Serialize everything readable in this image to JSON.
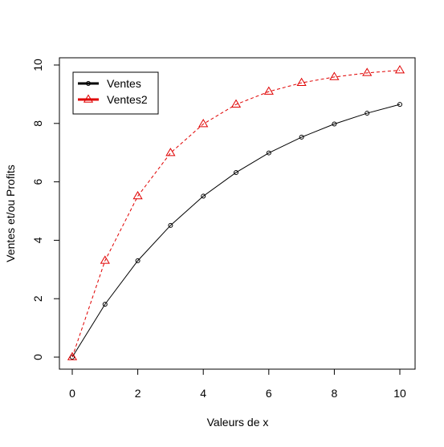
{
  "chart_data": {
    "type": "line",
    "title": "",
    "xlabel": "Valeurs de x",
    "ylabel": "Ventes et/ou Profits",
    "xlim": [
      0,
      10
    ],
    "ylim": [
      0,
      10
    ],
    "x_ticks": [
      0,
      2,
      4,
      6,
      8,
      10
    ],
    "y_ticks": [
      0,
      2,
      4,
      6,
      8,
      10
    ],
    "x_tick_labels": [
      "0",
      "2",
      "4",
      "6",
      "8",
      "10"
    ],
    "y_tick_labels": [
      "0",
      "2",
      "4",
      "6",
      "8",
      "10"
    ],
    "grid": false,
    "legend_position": "top-left",
    "series": [
      {
        "name": "Ventes",
        "color": "#000000",
        "line_style": "solid",
        "marker": "circle",
        "x": [
          0,
          1,
          2,
          3,
          4,
          5,
          6,
          7,
          8,
          9,
          10
        ],
        "values": [
          0,
          1.81,
          3.3,
          4.51,
          5.51,
          6.32,
          6.99,
          7.53,
          7.98,
          8.35,
          8.65
        ]
      },
      {
        "name": "Ventes2",
        "color": "#e00000",
        "line_style": "dashed",
        "marker": "triangle",
        "x": [
          0,
          1,
          2,
          3,
          4,
          5,
          6,
          7,
          8,
          9,
          10
        ],
        "values": [
          0,
          3.3,
          5.51,
          6.99,
          7.98,
          8.65,
          9.09,
          9.39,
          9.59,
          9.73,
          9.82
        ]
      }
    ]
  }
}
